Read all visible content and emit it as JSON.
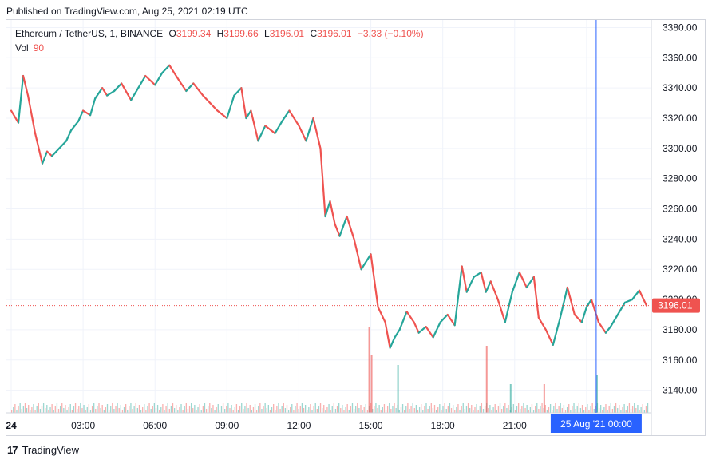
{
  "published": "Published on TradingView.com, Aug 25, 2021 02:19 UTC",
  "legend": {
    "symbol": "Ethereum / TetherUS, 1, BINANCE",
    "open_label": "O",
    "open": "3199.34",
    "high_label": "H",
    "high": "3199.66",
    "low_label": "L",
    "low": "3196.01",
    "close_label": "C",
    "close": "3196.01",
    "change": "−3.33 (−0.10%)",
    "vol_label": "Vol",
    "vol_value": "90"
  },
  "footer": {
    "brand": "TradingView",
    "logo_text": "17"
  },
  "colors": {
    "up": "#26a69a",
    "down": "#ef5350",
    "crosshair": "#2962ff",
    "grid": "#f0f3fa"
  },
  "chart_data": {
    "type": "line",
    "y_ticks": [
      3140,
      3160,
      3180,
      3200,
      3220,
      3240,
      3260,
      3280,
      3300,
      3320,
      3340,
      3360,
      3380
    ],
    "y_tick_labels": [
      "3140.00",
      "3160.00",
      "3180.00",
      "3200.00",
      "3220.00",
      "3240.00",
      "3260.00",
      "3280.00",
      "3300.00",
      "3320.00",
      "3340.00",
      "3360.00",
      "3380.00"
    ],
    "ylim": [
      3125,
      3385
    ],
    "x_tick_labels": [
      "24",
      "03:00",
      "06:00",
      "09:00",
      "12:00",
      "15:00",
      "18:00",
      "21:00",
      "00:00"
    ],
    "x_tick_hours": [
      0,
      3,
      6,
      9,
      12,
      15,
      18,
      21,
      24
    ],
    "xlim": [
      -0.2,
      26.7
    ],
    "crosshair_label": "25 Aug '21  00:00",
    "crosshair_hour": 24.4,
    "last_price": 3196.01,
    "last_price_label": "3196.01",
    "series": [
      {
        "hours": [
          0,
          0.3,
          0.5,
          0.7,
          1.0,
          1.3,
          1.5,
          1.7,
          2.0,
          2.3,
          2.5,
          2.8,
          3.0,
          3.3,
          3.5,
          3.8,
          4.0,
          4.3,
          4.6,
          5.0,
          5.3,
          5.6,
          6.0,
          6.3,
          6.6,
          7.0,
          7.3,
          7.6,
          8.0,
          8.3,
          8.6,
          9.0,
          9.3,
          9.6,
          9.8,
          10.0,
          10.3,
          10.6,
          11.0,
          11.3,
          11.6,
          12.0,
          12.3,
          12.6,
          12.9,
          13.1,
          13.3,
          13.5,
          13.7,
          14.0,
          14.3,
          14.6,
          15.0,
          15.3,
          15.6,
          15.8,
          16.0,
          16.2,
          16.5,
          16.8,
          17.0,
          17.3,
          17.6,
          17.9,
          18.2,
          18.5,
          18.8,
          19.0,
          19.3,
          19.6,
          19.8,
          20.0,
          20.3,
          20.6,
          20.9,
          21.2,
          21.5,
          21.8,
          22.0,
          22.3,
          22.6,
          22.9,
          23.2,
          23.5,
          23.8,
          24.0,
          24.2,
          24.5,
          24.8,
          25.0,
          25.3,
          25.6,
          25.9,
          26.2,
          26.5
        ],
        "values": [
          3325,
          3317,
          3348,
          3335,
          3310,
          3290,
          3298,
          3295,
          3300,
          3305,
          3312,
          3318,
          3325,
          3322,
          3333,
          3340,
          3335,
          3338,
          3343,
          3332,
          3340,
          3348,
          3342,
          3350,
          3355,
          3345,
          3338,
          3343,
          3335,
          3330,
          3325,
          3320,
          3335,
          3340,
          3320,
          3325,
          3305,
          3315,
          3310,
          3318,
          3325,
          3315,
          3305,
          3320,
          3300,
          3255,
          3265,
          3250,
          3242,
          3255,
          3240,
          3220,
          3230,
          3195,
          3185,
          3168,
          3175,
          3180,
          3192,
          3185,
          3178,
          3182,
          3175,
          3185,
          3190,
          3183,
          3222,
          3205,
          3215,
          3218,
          3205,
          3212,
          3200,
          3185,
          3205,
          3218,
          3208,
          3215,
          3188,
          3180,
          3170,
          3188,
          3208,
          3190,
          3185,
          3195,
          3200,
          3185,
          3178,
          3182,
          3190,
          3198,
          3200,
          3206,
          3196
        ]
      }
    ],
    "volume_hours": [
      14.9,
      16.1,
      19.8,
      24.4,
      15.0,
      20.8,
      22.2
    ],
    "volume_spikes": [
      9,
      5,
      7,
      4,
      6,
      3,
      3
    ]
  }
}
